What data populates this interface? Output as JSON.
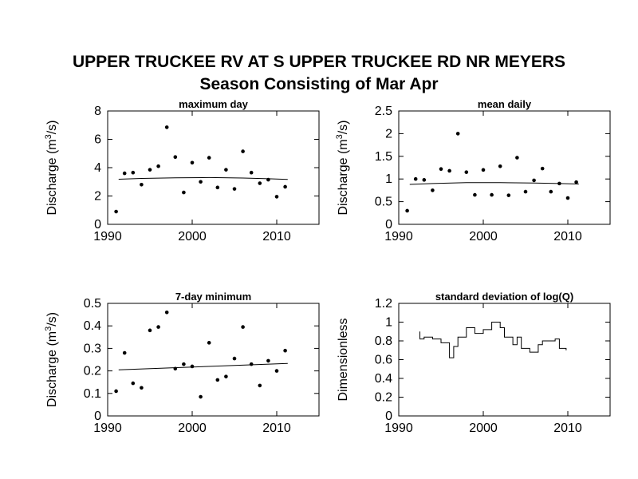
{
  "title": "UPPER TRUCKEE RV AT S UPPER TRUCKEE RD NR MEYERS",
  "subtitle": "Season Consisting of Mar Apr",
  "chart_data": [
    {
      "type": "scatter",
      "title": "maximum day",
      "ylabel_text": "Discharge (m",
      "ylabel_sup": "3",
      "ylabel_tail": "/s)",
      "xlim": [
        1990,
        2015
      ],
      "ylim": [
        0,
        8
      ],
      "xticks": [
        1990,
        2000,
        2010
      ],
      "yticks": [
        0,
        2,
        4,
        6,
        8
      ],
      "ytick_labels": [
        "0",
        "2",
        "4",
        "6",
        "8"
      ],
      "points": [
        [
          1991,
          0.9
        ],
        [
          1992,
          3.6
        ],
        [
          1993,
          3.65
        ],
        [
          1994,
          2.8
        ],
        [
          1995,
          3.85
        ],
        [
          1996,
          4.1
        ],
        [
          1997,
          6.85
        ],
        [
          1998,
          4.75
        ],
        [
          1999,
          2.25
        ],
        [
          2000,
          4.35
        ],
        [
          2001,
          3.0
        ],
        [
          2002,
          4.7
        ],
        [
          2003,
          2.6
        ],
        [
          2004,
          3.85
        ],
        [
          2005,
          2.5
        ],
        [
          2006,
          5.15
        ],
        [
          2007,
          3.65
        ],
        [
          2008,
          2.9
        ],
        [
          2009,
          3.15
        ],
        [
          2010,
          1.95
        ],
        [
          2011,
          2.65
        ]
      ],
      "trend": [
        [
          1991.3,
          3.18
        ],
        [
          1994,
          3.24
        ],
        [
          1998,
          3.28
        ],
        [
          2002,
          3.3
        ],
        [
          2006,
          3.27
        ],
        [
          2009,
          3.22
        ],
        [
          2011.3,
          3.17
        ]
      ]
    },
    {
      "type": "scatter",
      "title": "mean daily",
      "ylabel_text": "Discharge (m",
      "ylabel_sup": "3",
      "ylabel_tail": "/s)",
      "xlim": [
        1990,
        2015
      ],
      "ylim": [
        0,
        2.5
      ],
      "xticks": [
        1990,
        2000,
        2010
      ],
      "yticks": [
        0,
        0.5,
        1,
        1.5,
        2,
        2.5
      ],
      "ytick_labels": [
        "0",
        "0.5",
        "1",
        "1.5",
        "2",
        "2.5"
      ],
      "points": [
        [
          1991,
          0.3
        ],
        [
          1992,
          1.0
        ],
        [
          1993,
          0.98
        ],
        [
          1994,
          0.75
        ],
        [
          1995,
          1.22
        ],
        [
          1996,
          1.18
        ],
        [
          1997,
          2.0
        ],
        [
          1998,
          1.15
        ],
        [
          1999,
          0.65
        ],
        [
          2000,
          1.2
        ],
        [
          2001,
          0.65
        ],
        [
          2002,
          1.28
        ],
        [
          2003,
          0.64
        ],
        [
          2004,
          1.47
        ],
        [
          2005,
          0.72
        ],
        [
          2006,
          0.97
        ],
        [
          2007,
          1.23
        ],
        [
          2008,
          0.72
        ],
        [
          2009,
          0.9
        ],
        [
          2010,
          0.58
        ],
        [
          2011,
          0.93
        ]
      ],
      "trend": [
        [
          1991.3,
          0.88
        ],
        [
          1994,
          0.9
        ],
        [
          1998,
          0.92
        ],
        [
          2002,
          0.92
        ],
        [
          2006,
          0.91
        ],
        [
          2009,
          0.9
        ],
        [
          2011.3,
          0.89
        ]
      ]
    },
    {
      "type": "scatter",
      "title": "7-day minimum",
      "ylabel_text": "Discharge (m",
      "ylabel_sup": "3",
      "ylabel_tail": "/s)",
      "xlim": [
        1990,
        2015
      ],
      "ylim": [
        0,
        0.5
      ],
      "xticks": [
        1990,
        2000,
        2010
      ],
      "yticks": [
        0,
        0.1,
        0.2,
        0.3,
        0.4,
        0.5
      ],
      "ytick_labels": [
        "0",
        "0.1",
        "0.2",
        "0.3",
        "0.4",
        "0.5"
      ],
      "points": [
        [
          1991,
          0.11
        ],
        [
          1992,
          0.28
        ],
        [
          1993,
          0.145
        ],
        [
          1994,
          0.125
        ],
        [
          1995,
          0.38
        ],
        [
          1996,
          0.395
        ],
        [
          1997,
          0.46
        ],
        [
          1998,
          0.21
        ],
        [
          1999,
          0.23
        ],
        [
          2000,
          0.22
        ],
        [
          2001,
          0.085
        ],
        [
          2002,
          0.325
        ],
        [
          2003,
          0.16
        ],
        [
          2004,
          0.175
        ],
        [
          2005,
          0.255
        ],
        [
          2006,
          0.395
        ],
        [
          2007,
          0.23
        ],
        [
          2008,
          0.135
        ],
        [
          2009,
          0.245
        ],
        [
          2010,
          0.2
        ],
        [
          2011,
          0.29
        ]
      ],
      "trend": [
        [
          1991.3,
          0.205
        ],
        [
          2011.3,
          0.233
        ]
      ]
    },
    {
      "type": "line",
      "title": "standard deviation of log(Q)",
      "ylabel_text": "Dimensionless",
      "ylabel_sup": "",
      "ylabel_tail": "",
      "xlim": [
        1990,
        2015
      ],
      "ylim": [
        0,
        1.2
      ],
      "xticks": [
        1990,
        2000,
        2010
      ],
      "yticks": [
        0,
        0.2,
        0.4,
        0.6,
        0.8,
        1.0,
        1.2
      ],
      "ytick_labels": [
        "0",
        "0.2",
        "0.4",
        "0.6",
        "0.8",
        "1",
        "1.2"
      ],
      "line": [
        [
          1992.5,
          0.9
        ],
        [
          1992.5,
          0.82
        ],
        [
          1993,
          0.82
        ],
        [
          1993,
          0.84
        ],
        [
          1994,
          0.84
        ],
        [
          1994,
          0.82
        ],
        [
          1995,
          0.82
        ],
        [
          1995,
          0.78
        ],
        [
          1996,
          0.78
        ],
        [
          1996,
          0.62
        ],
        [
          1996.5,
          0.62
        ],
        [
          1996.5,
          0.74
        ],
        [
          1997,
          0.74
        ],
        [
          1997,
          0.84
        ],
        [
          1998,
          0.84
        ],
        [
          1998,
          0.94
        ],
        [
          1999,
          0.94
        ],
        [
          1999,
          0.88
        ],
        [
          2000,
          0.88
        ],
        [
          2000,
          0.92
        ],
        [
          2001,
          0.92
        ],
        [
          2001,
          1.0
        ],
        [
          2002,
          1.0
        ],
        [
          2002,
          0.94
        ],
        [
          2002.5,
          0.94
        ],
        [
          2002.5,
          0.84
        ],
        [
          2003.5,
          0.84
        ],
        [
          2003.5,
          0.76
        ],
        [
          2004,
          0.76
        ],
        [
          2004,
          0.84
        ],
        [
          2004.5,
          0.84
        ],
        [
          2004.5,
          0.72
        ],
        [
          2005.5,
          0.72
        ],
        [
          2005.5,
          0.68
        ],
        [
          2006.5,
          0.68
        ],
        [
          2006.5,
          0.76
        ],
        [
          2007,
          0.76
        ],
        [
          2007,
          0.8
        ],
        [
          2008.5,
          0.8
        ],
        [
          2008.5,
          0.82
        ],
        [
          2009,
          0.82
        ],
        [
          2009,
          0.72
        ],
        [
          2009.8,
          0.72
        ],
        [
          2009.8,
          0.7
        ]
      ]
    }
  ]
}
